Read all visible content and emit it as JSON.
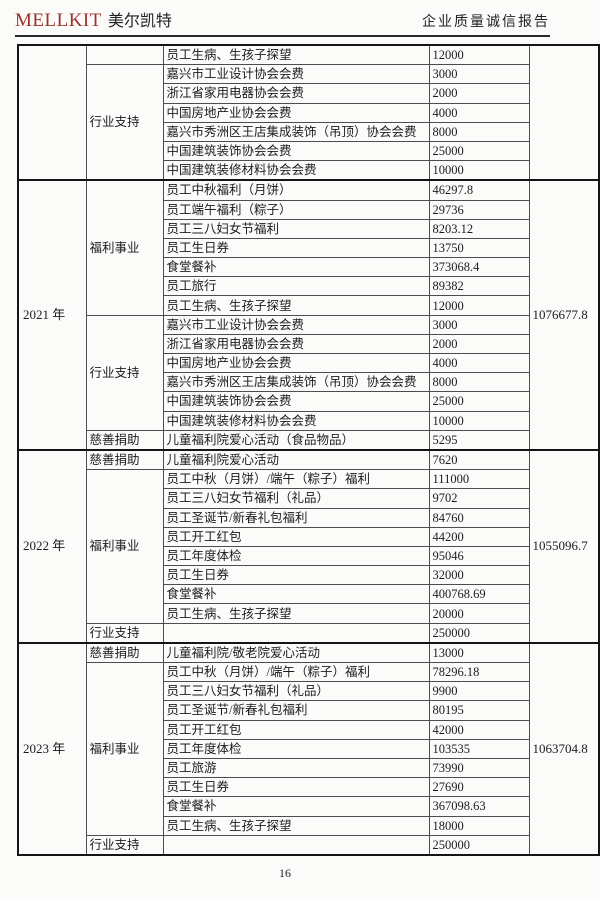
{
  "header": {
    "brand_en": "MELLKIT",
    "brand_cn": "美尔凯特",
    "title": "企业质量诚信报告"
  },
  "footer": {
    "page_number": "16"
  },
  "table": {
    "sections": [
      {
        "year": "",
        "total": "",
        "groups": [
          {
            "category": "",
            "rows": [
              {
                "item": "员工生病、生孩子探望",
                "value": "12000"
              }
            ]
          },
          {
            "category": "行业支持",
            "rows": [
              {
                "item": "嘉兴市工业设计协会会费",
                "value": "3000"
              },
              {
                "item": "浙江省家用电器协会会费",
                "value": "2000"
              },
              {
                "item": "中国房地产业协会会费",
                "value": "4000"
              },
              {
                "item": "嘉兴市秀洲区王店集成装饰（吊顶）协会会费",
                "value": "8000"
              },
              {
                "item": "中国建筑装饰协会会费",
                "value": "25000"
              },
              {
                "item": "中国建筑装修材料协会会费",
                "value": "10000"
              }
            ]
          }
        ]
      },
      {
        "year": "2021 年",
        "total": "1076677.8",
        "groups": [
          {
            "category": "福利事业",
            "rows": [
              {
                "item": "员工中秋福利（月饼）",
                "value": "46297.8"
              },
              {
                "item": "员工端午福利（粽子）",
                "value": "29736"
              },
              {
                "item": "员工三八妇女节福利",
                "value": "8203.12"
              },
              {
                "item": "员工生日券",
                "value": "13750"
              },
              {
                "item": "食堂餐补",
                "value": "373068.4"
              },
              {
                "item": "员工旅行",
                "value": "89382"
              },
              {
                "item": "员工生病、生孩子探望",
                "value": "12000"
              }
            ]
          },
          {
            "category": "行业支持",
            "rows": [
              {
                "item": "嘉兴市工业设计协会会费",
                "value": "3000"
              },
              {
                "item": "浙江省家用电器协会会费",
                "value": "2000"
              },
              {
                "item": "中国房地产业协会会费",
                "value": "4000"
              },
              {
                "item": "嘉兴市秀洲区王店集成装饰（吊顶）协会会费",
                "value": "8000"
              },
              {
                "item": "中国建筑装饰协会会费",
                "value": "25000"
              },
              {
                "item": "中国建筑装修材料协会会费",
                "value": "10000"
              }
            ]
          },
          {
            "category": "慈善捐助",
            "rows": [
              {
                "item": "儿童福利院爱心活动（食品物品）",
                "value": "5295"
              }
            ]
          }
        ]
      },
      {
        "year": "2022 年",
        "total": "1055096.7",
        "groups": [
          {
            "category": "慈善捐助",
            "rows": [
              {
                "item": "儿童福利院爱心活动",
                "value": "7620"
              }
            ]
          },
          {
            "category": "福利事业",
            "rows": [
              {
                "item": "员工中秋（月饼）/端午（粽子）福利",
                "value": "111000"
              },
              {
                "item": "员工三八妇女节福利（礼品）",
                "value": "9702"
              },
              {
                "item": "员工圣诞节/新春礼包福利",
                "value": "84760"
              },
              {
                "item": "员工开工红包",
                "value": "44200"
              },
              {
                "item": "员工年度体检",
                "value": "95046"
              },
              {
                "item": "员工生日券",
                "value": "32000"
              },
              {
                "item": "食堂餐补",
                "value": "400768.69"
              },
              {
                "item": "员工生病、生孩子探望",
                "value": "20000"
              }
            ]
          },
          {
            "category": "行业支持",
            "rows": [
              {
                "item": "",
                "value": "250000"
              }
            ]
          }
        ]
      },
      {
        "year": "2023 年",
        "total": "1063704.8",
        "groups": [
          {
            "category": "慈善捐助",
            "rows": [
              {
                "item": "儿童福利院/敬老院爱心活动",
                "value": "13000"
              }
            ]
          },
          {
            "category": "福利事业",
            "rows": [
              {
                "item": "员工中秋（月饼）/端午（粽子）福利",
                "value": "78296.18"
              },
              {
                "item": "员工三八妇女节福利（礼品）",
                "value": "9900"
              },
              {
                "item": "员工圣诞节/新春礼包福利",
                "value": "80195"
              },
              {
                "item": "员工开工红包",
                "value": "42000"
              },
              {
                "item": "员工年度体检",
                "value": "103535"
              },
              {
                "item": "员工旅游",
                "value": "73990"
              },
              {
                "item": "员工生日券",
                "value": "27690"
              },
              {
                "item": "食堂餐补",
                "value": "367098.63"
              },
              {
                "item": "员工生病、生孩子探望",
                "value": "18000"
              }
            ]
          },
          {
            "category": "行业支持",
            "rows": [
              {
                "item": "",
                "value": "250000"
              }
            ]
          }
        ]
      }
    ]
  }
}
